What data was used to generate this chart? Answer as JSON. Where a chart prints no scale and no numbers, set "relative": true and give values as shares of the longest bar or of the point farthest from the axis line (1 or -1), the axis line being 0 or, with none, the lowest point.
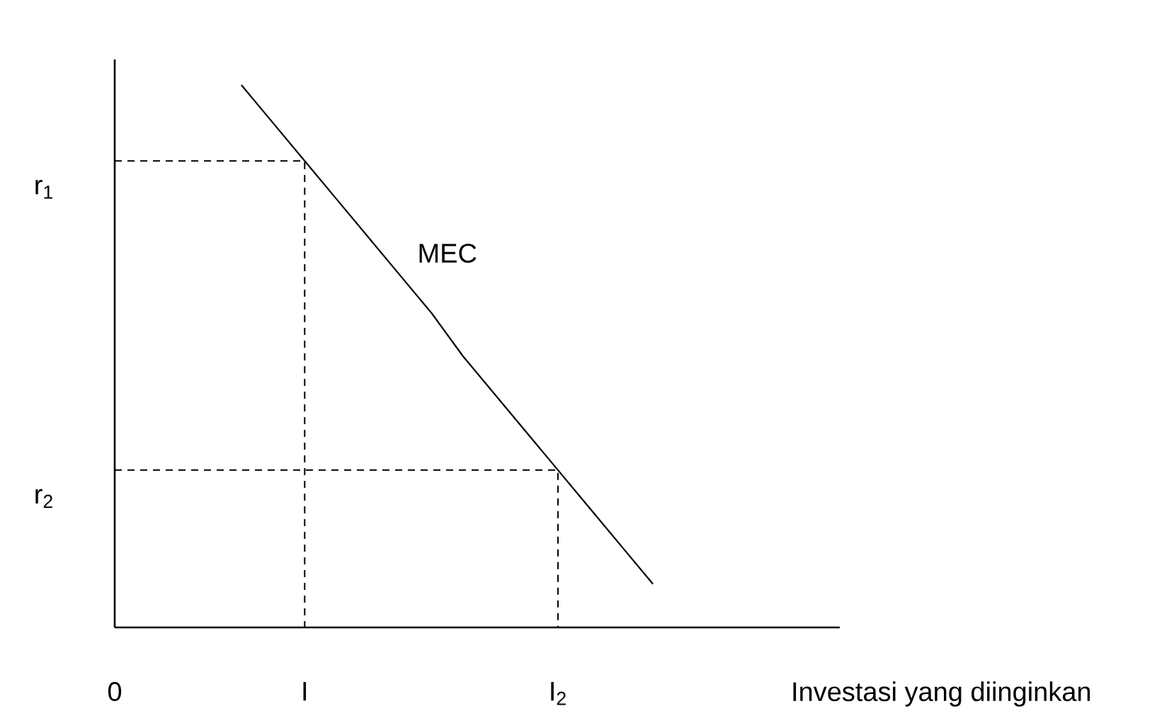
{
  "chart_data": {
    "type": "line",
    "xlabel": "Investasi yang diinginkan",
    "relative": true,
    "marker": "none",
    "categories": [
      "0",
      null,
      null,
      null,
      null,
      null,
      "I",
      null,
      null,
      null,
      null,
      null,
      null,
      null,
      "I$_{2}$",
      null,
      null,
      null,
      null,
      null,
      null,
      null,
      null
    ],
    "series": [
      {
        "name": "MEC",
        "color": "#000000",
        "line_style": "solid",
        "values": [
          null,
          null,
          null,
          null,
          1,
          0.93,
          0.86,
          0.79,
          0.72,
          0.65,
          0.58,
          0.5,
          0.43,
          0.36,
          0.29,
          0.22,
          0.15,
          0.08,
          null,
          null,
          null,
          null,
          null
        ]
      }
    ],
    "ref_lines": [
      {
        "axis": "y",
        "value": 0.86,
        "label": "r$_{1}$",
        "color": "#000000",
        "line_style": "dashed"
      },
      {
        "axis": "y",
        "value": 0.29,
        "label": "r$_{2}$",
        "color": "#000000",
        "line_style": "dashed"
      }
    ]
  }
}
